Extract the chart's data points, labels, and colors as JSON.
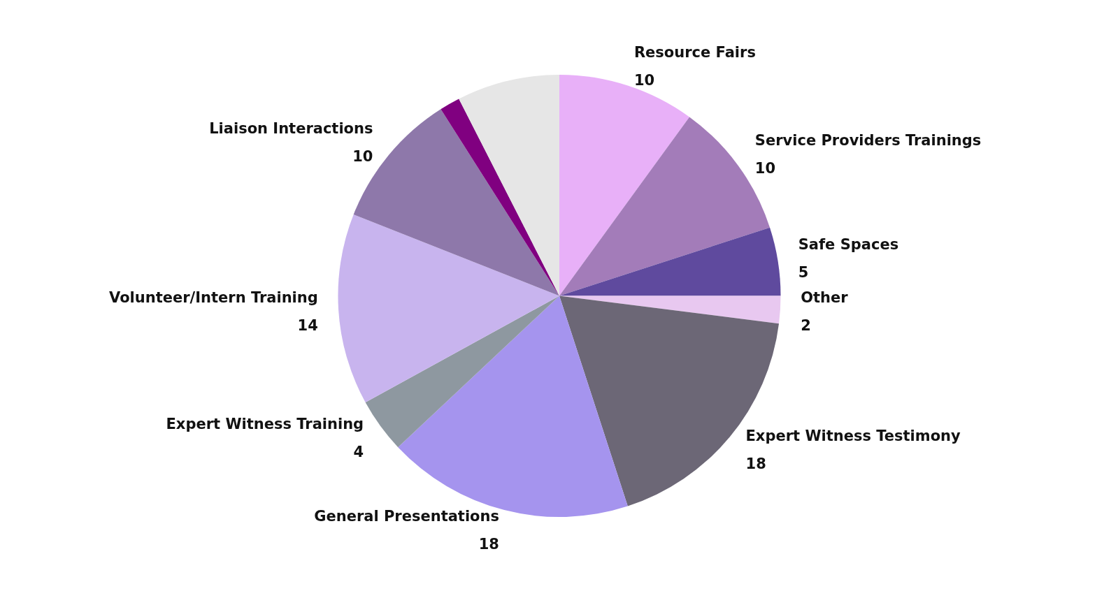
{
  "chart_data": {
    "type": "pie",
    "categories": [
      "Resource Fairs",
      "Service Providers Trainings",
      "Safe Spaces",
      "Other",
      "Expert Witness Testimony",
      "General Presentations",
      "Expert Witness Training",
      "Volunteer/Intern Training",
      "Liaison Interactions",
      null,
      null
    ],
    "values": [
      10,
      10,
      5,
      2,
      18,
      18,
      4,
      14,
      10,
      1.5,
      7.5
    ],
    "value_labels": [
      "10",
      "10",
      "5",
      "2",
      "18",
      "18",
      "4",
      "14",
      "10",
      null,
      null
    ],
    "colors": [
      "#e8b0f8",
      "#a37cb9",
      "#5f4a9e",
      "#e8c8f0",
      "#6c6776",
      "#a594ee",
      "#8e98a0",
      "#c8b4ee",
      "#8e78aa",
      "#800080",
      "#e6e6e6"
    ]
  }
}
